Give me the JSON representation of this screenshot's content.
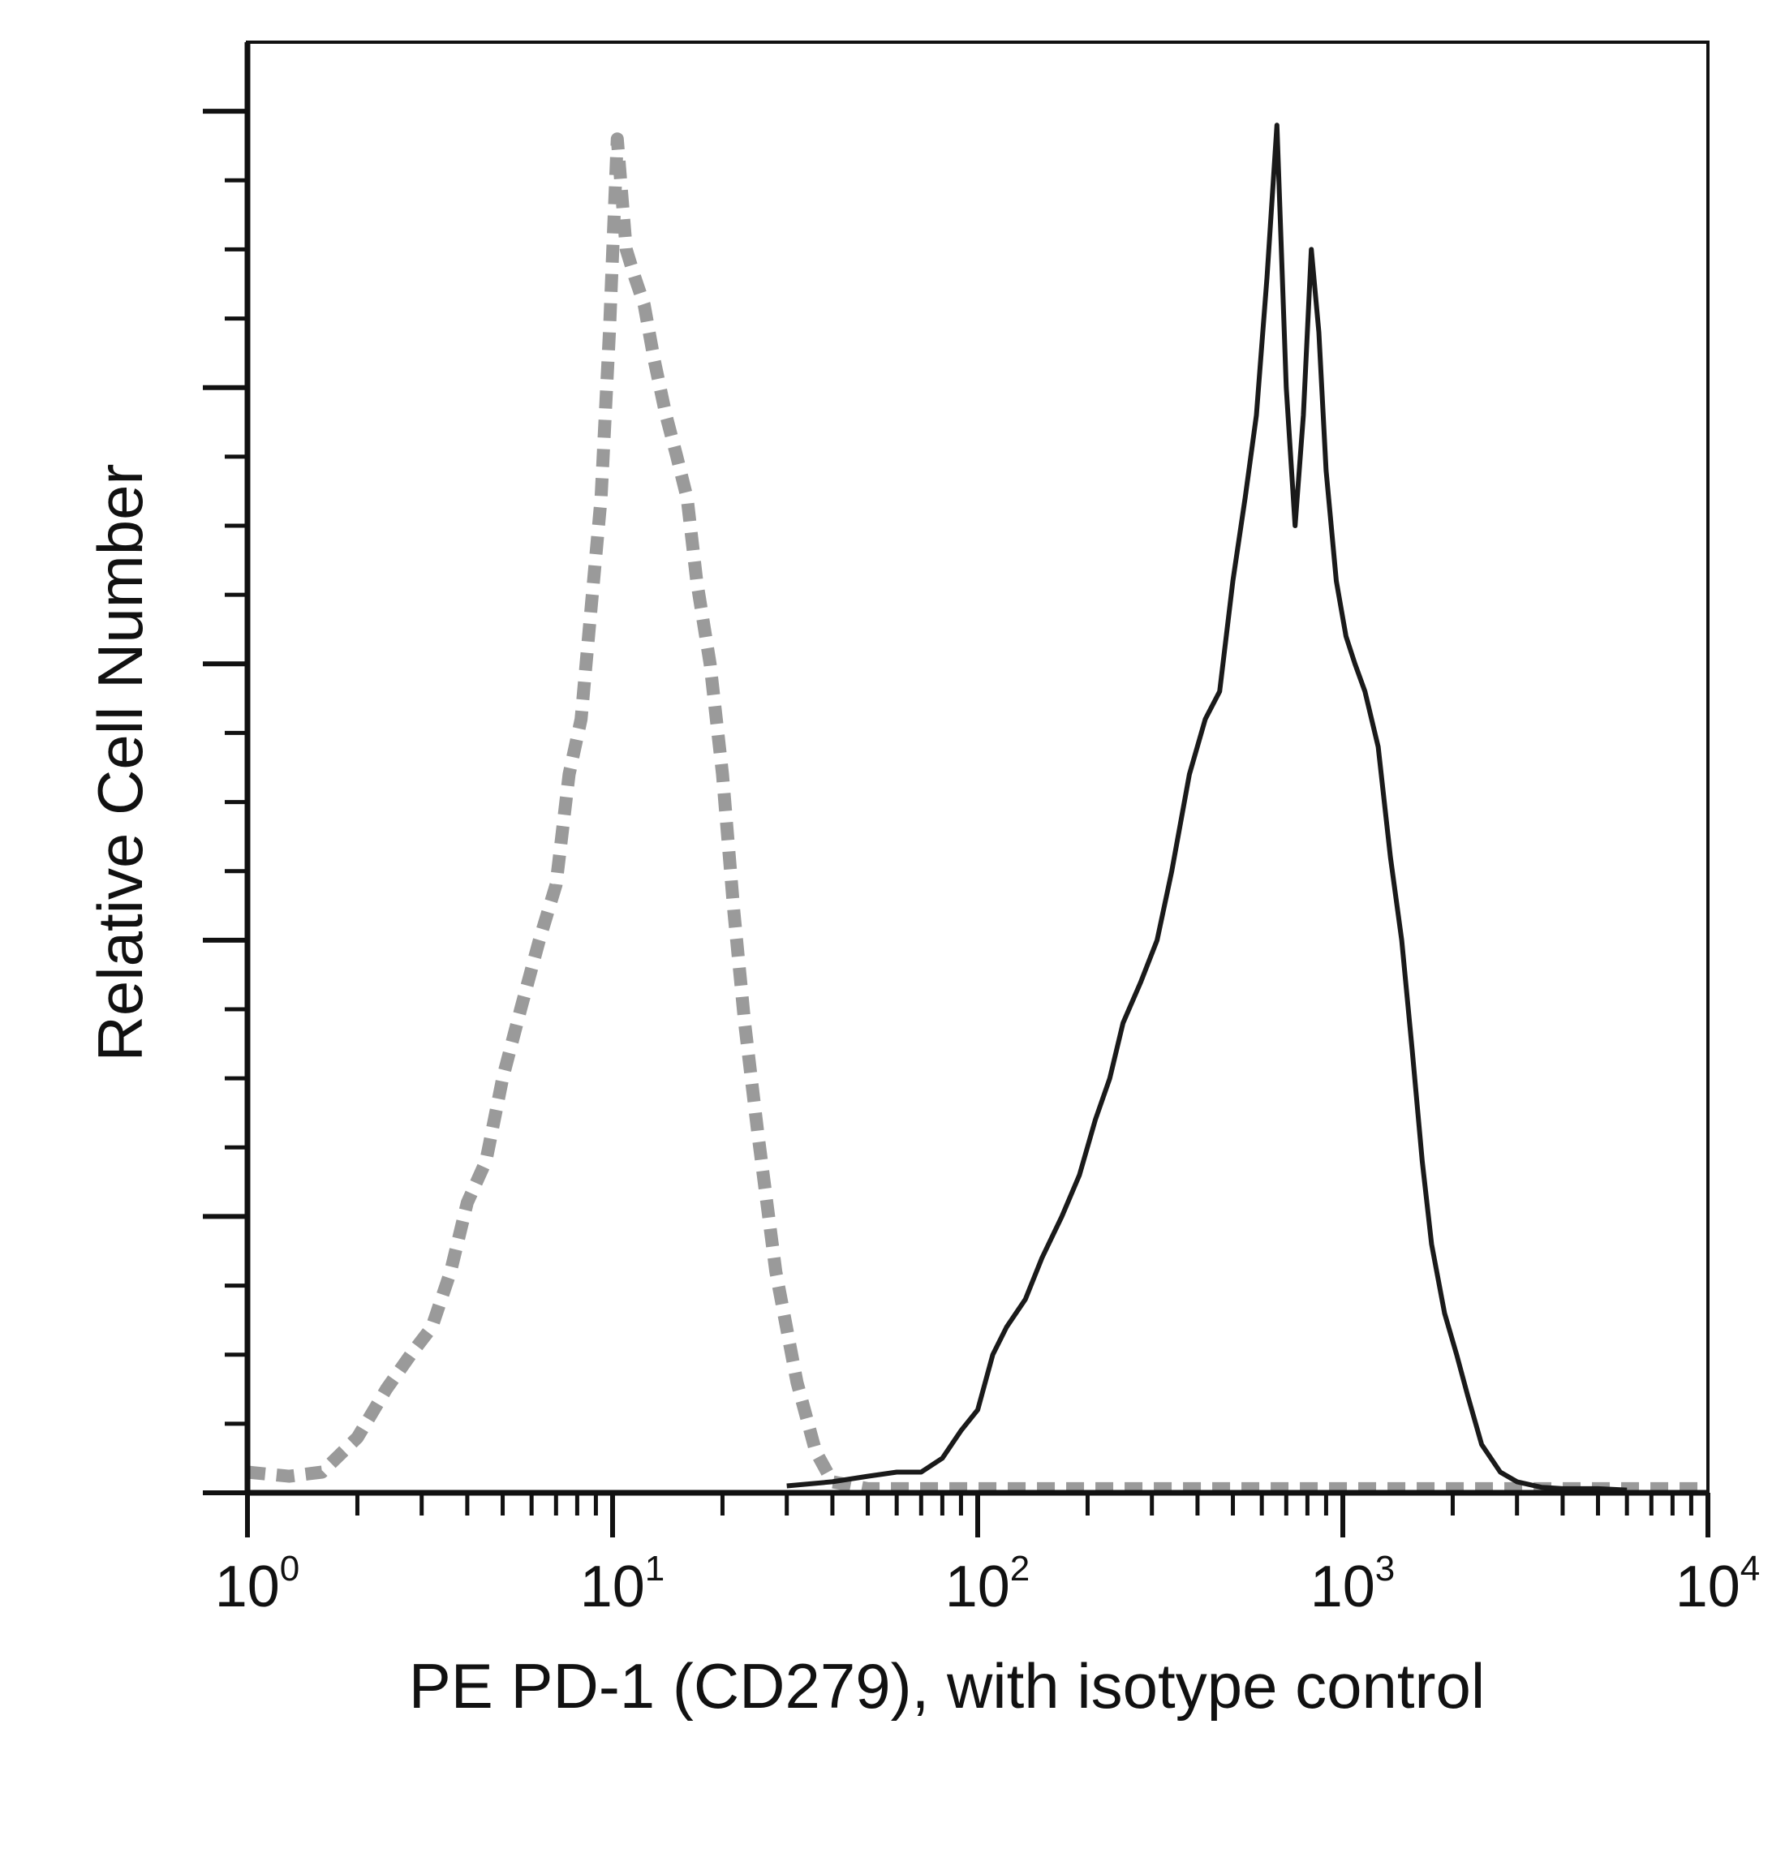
{
  "chart_data": {
    "type": "area",
    "xlabel": "PE PD-1 (CD279), with isotype control",
    "ylabel": "Relative Cell Number",
    "x_scale": "log",
    "xlim": [
      1,
      10000
    ],
    "ylim": [
      0,
      105
    ],
    "x_ticks": [
      {
        "base": "10",
        "exp": "0",
        "value": 1
      },
      {
        "base": "10",
        "exp": "1",
        "value": 10
      },
      {
        "base": "10",
        "exp": "2",
        "value": 100
      },
      {
        "base": "10",
        "exp": "3",
        "value": 1000
      },
      {
        "base": "10",
        "exp": "4",
        "value": 10000
      }
    ],
    "y_ticks_labeled": false,
    "grid": false,
    "series": [
      {
        "style": "dashed",
        "color": "#9a9a9a",
        "x": [
          1.0,
          1.3,
          1.6,
          2.0,
          2.4,
          2.8,
          3.2,
          3.6,
          4.0,
          4.5,
          5.0,
          5.6,
          6.3,
          7.0,
          7.6,
          8.2,
          8.8,
          9.3,
          9.8,
          10.3,
          10.9,
          11.5,
          12.2,
          13.0,
          14.0,
          15.0,
          16.0,
          17.0,
          18.5,
          20.0,
          21.5,
          23.0,
          25.0,
          28.0,
          32.0,
          36.0,
          40.0,
          50.0,
          100.0,
          1000.0,
          10000.0
        ],
        "y": [
          1.5,
          1.2,
          1.5,
          4.0,
          7.5,
          10.0,
          12.0,
          16.0,
          21.0,
          24.0,
          30.0,
          35.0,
          40.0,
          44.0,
          52.0,
          56.0,
          65.0,
          72.0,
          84.0,
          98.0,
          90.0,
          88.0,
          86.0,
          82.0,
          78.0,
          75.0,
          72.0,
          66.0,
          60.0,
          52.0,
          42.0,
          34.0,
          26.0,
          16.0,
          8.0,
          3.0,
          0.8,
          0.3,
          0.3,
          0.3,
          0.3
        ]
      },
      {
        "style": "solid",
        "color": "#1a1a1a",
        "x": [
          30,
          40,
          50,
          60,
          70,
          80,
          90,
          100,
          110,
          120,
          135,
          150,
          170,
          190,
          210,
          230,
          250,
          280,
          310,
          340,
          380,
          420,
          460,
          500,
          540,
          580,
          620,
          660,
          700,
          740,
          780,
          820,
          860,
          900,
          960,
          1020,
          1080,
          1150,
          1250,
          1350,
          1450,
          1550,
          1650,
          1750,
          1900,
          2050,
          2200,
          2400,
          2700,
          3000,
          3500,
          4000,
          5000,
          6000
        ],
        "y": [
          0.5,
          0.8,
          1.2,
          1.5,
          1.5,
          2.5,
          4.5,
          6.0,
          10.0,
          12.0,
          14.0,
          17.0,
          20.0,
          23.0,
          27.0,
          30.0,
          34.0,
          37.0,
          40.0,
          45.0,
          52.0,
          56.0,
          58.0,
          66.0,
          72.0,
          78.0,
          88.0,
          99.0,
          80.0,
          70.0,
          78.0,
          90.0,
          84.0,
          74.0,
          66.0,
          62.0,
          60.0,
          58.0,
          54.0,
          46.0,
          40.0,
          32.0,
          24.0,
          18.0,
          13.0,
          10.0,
          7.0,
          3.5,
          1.5,
          0.8,
          0.4,
          0.3,
          0.3,
          0.2
        ]
      }
    ]
  }
}
